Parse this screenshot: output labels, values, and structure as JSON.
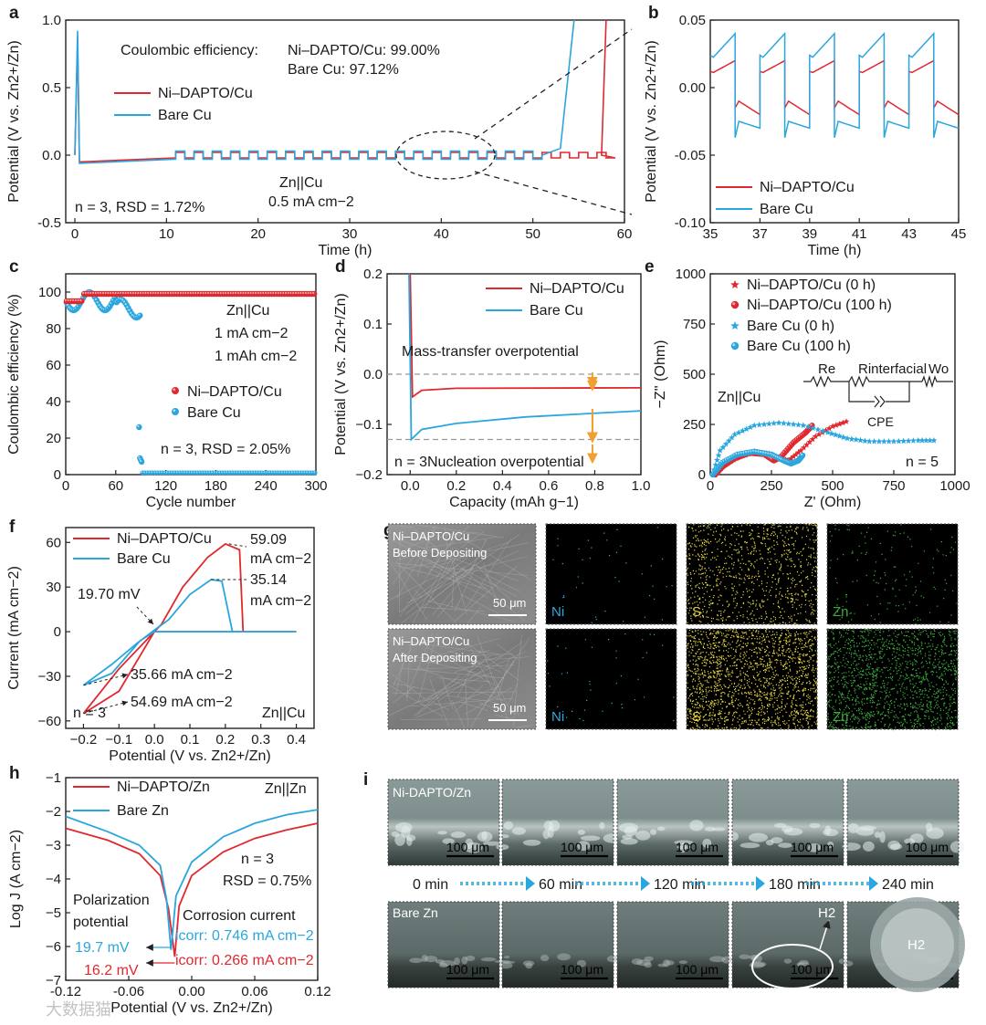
{
  "colors": {
    "red": "#e0282e",
    "blue": "#2aa6de",
    "orange": "#f0a030",
    "axis": "#222222",
    "dash": "#999999",
    "ni": "#35a8d8",
    "s": "#e6d640",
    "zn": "#3cae3c"
  },
  "panel_letters": [
    "a",
    "b",
    "c",
    "d",
    "e",
    "f",
    "g",
    "h",
    "i"
  ],
  "chart_data": [
    {
      "id": "a",
      "type": "line",
      "title": "",
      "xlabel": "Time (h)",
      "ylabel": "Potential (V vs. Zn2+/Zn)",
      "xlim": [
        -1,
        60
      ],
      "ylim": [
        -0.5,
        1.0
      ],
      "xticks": [
        0,
        10,
        20,
        30,
        40,
        50,
        60
      ],
      "yticks": [
        -0.5,
        0.0,
        0.5,
        1.0
      ],
      "ytick_labels": [
        "-0.5",
        "0.0",
        "0.5",
        "1.0"
      ],
      "annotations": [
        "Coulombic efficiency:",
        "Ni–DAPTO/Cu: 99.00%",
        "Bare Cu: 97.12%",
        "Zn||Cu",
        "n = 3, RSD = 1.72%",
        "0.5 mA cm−2"
      ],
      "series": [
        {
          "name": "Ni–DAPTO/Cu",
          "points": [
            [
              0,
              0.0
            ],
            [
              0.3,
              0.85
            ],
            [
              0.5,
              -0.05
            ],
            [
              11,
              -0.02
            ],
            [
              11,
              0.0
            ],
            [
              36,
              0.0
            ],
            [
              57.5,
              0.0
            ],
            [
              58,
              1.0
            ]
          ],
          "cycling_from": 11,
          "cycling_to": 57.5,
          "amplitude": 0.02
        },
        {
          "name": "Bare Cu",
          "points": [
            [
              0,
              0.0
            ],
            [
              0.3,
              0.92
            ],
            [
              0.5,
              -0.06
            ],
            [
              11,
              -0.03
            ],
            [
              11,
              0.0
            ],
            [
              51,
              0.0
            ],
            [
              53,
              0.05
            ],
            [
              54.5,
              1.0
            ]
          ],
          "cycling_from": 11,
          "cycling_to": 51,
          "amplitude": 0.03
        }
      ]
    },
    {
      "id": "b",
      "type": "line",
      "title": "",
      "xlabel": "Time (h)",
      "ylabel": "Potential (V vs. Zn2+/Zn)",
      "xlim": [
        35,
        45
      ],
      "ylim": [
        -0.1,
        0.05
      ],
      "xticks": [
        35,
        37,
        39,
        41,
        43,
        45
      ],
      "yticks": [
        -0.1,
        -0.05,
        0.0,
        0.05
      ],
      "ytick_labels": [
        "-0.10",
        "-0.05",
        "0.00",
        "0.05"
      ],
      "series": [
        {
          "name": "Ni–DAPTO/Cu",
          "charge_start": 0.01,
          "charge_end": 0.02,
          "discharge_start": -0.01,
          "discharge_end": -0.02
        },
        {
          "name": "Bare Cu",
          "charge_start": 0.02,
          "charge_end": 0.04,
          "discharge_start": -0.025,
          "discharge_end": -0.03
        }
      ]
    },
    {
      "id": "c",
      "type": "scatter",
      "title": "",
      "xlabel": "Cycle number",
      "ylabel": "Coulombic efficiency (%)",
      "xlim": [
        0,
        300
      ],
      "ylim": [
        0,
        110
      ],
      "xticks": [
        0,
        60,
        120,
        180,
        240,
        300
      ],
      "yticks": [
        0,
        20,
        40,
        60,
        80,
        100
      ],
      "annotations": [
        "Zn||Cu",
        "1 mA cm−2",
        "1 mAh cm−2",
        "n = 3, RSD = 2.05%"
      ],
      "series": [
        {
          "name": "Ni–DAPTO/Cu",
          "from": 1,
          "to": 300,
          "value": 99
        },
        {
          "name": "Bare Cu",
          "from": 1,
          "to": 90,
          "value": 95,
          "outliers": [
            [
              88,
              26
            ],
            [
              89,
              9
            ],
            [
              90,
              8
            ],
            [
              91,
              7
            ]
          ],
          "tail": [
            92,
            300,
            0
          ]
        }
      ]
    },
    {
      "id": "d",
      "type": "line",
      "title": "",
      "xlabel": "Capacity (mAh g−1)",
      "ylabel": "Potential (V vs. Zn2+/Zn)",
      "xlim": [
        -0.1,
        1.0
      ],
      "ylim": [
        -0.2,
        0.2
      ],
      "xticks": [
        0.0,
        0.2,
        0.4,
        0.6,
        0.8,
        1.0
      ],
      "yticks": [
        -0.2,
        -0.1,
        0.0,
        0.1,
        0.2
      ],
      "annotations": [
        "Mass-transfer overpotential",
        "Nucleation overpotential",
        "n = 3"
      ],
      "series": [
        {
          "name": "Ni–DAPTO/Cu",
          "points": [
            [
              0.0,
              0.2
            ],
            [
              0.01,
              -0.045
            ],
            [
              0.05,
              -0.032
            ],
            [
              0.2,
              -0.028
            ],
            [
              1.0,
              -0.027
            ]
          ]
        },
        {
          "name": "Bare Cu",
          "points": [
            [
              -0.005,
              0.2
            ],
            [
              0.005,
              -0.13
            ],
            [
              0.05,
              -0.11
            ],
            [
              0.2,
              -0.098
            ],
            [
              0.5,
              -0.085
            ],
            [
              1.0,
              -0.073
            ]
          ]
        }
      ],
      "reference_lines": [
        0.0,
        -0.13
      ]
    },
    {
      "id": "e",
      "type": "scatter",
      "title": "",
      "xlabel": "Z' (Ohm)",
      "ylabel": "−Z'' (Ohm)",
      "xlim": [
        0,
        1000
      ],
      "ylim": [
        0,
        1000
      ],
      "xticks": [
        0,
        250,
        500,
        750,
        1000
      ],
      "yticks": [
        0,
        250,
        500,
        750,
        1000
      ],
      "annotations": [
        "Zn||Cu",
        "n = 5",
        "Re",
        "Rinterfacial",
        "Wo",
        "CPE"
      ],
      "series": [
        {
          "name": "Ni–DAPTO/Cu (0 h)",
          "marker": "star",
          "color": "red",
          "points": [
            [
              20,
              0
            ],
            [
              60,
              50
            ],
            [
              120,
              90
            ],
            [
              180,
              110
            ],
            [
              240,
              105
            ],
            [
              290,
              80
            ],
            [
              320,
              70
            ],
            [
              370,
              120
            ],
            [
              430,
              190
            ],
            [
              500,
              240
            ],
            [
              570,
              270
            ]
          ]
        },
        {
          "name": "Ni–DAPTO/Cu (100 h)",
          "marker": "circle",
          "color": "red",
          "points": [
            [
              20,
              0
            ],
            [
              50,
              40
            ],
            [
              100,
              80
            ],
            [
              160,
              108
            ],
            [
              220,
              102
            ],
            [
              260,
              70
            ],
            [
              290,
              90
            ],
            [
              340,
              160
            ],
            [
              390,
              210
            ],
            [
              420,
              250
            ]
          ]
        },
        {
          "name": "Bare Cu (0 h)",
          "marker": "star",
          "color": "blue",
          "points": [
            [
              10,
              0
            ],
            [
              40,
              120
            ],
            [
              100,
              200
            ],
            [
              180,
              245
            ],
            [
              280,
              258
            ],
            [
              380,
              245
            ],
            [
              480,
              210
            ],
            [
              560,
              180
            ],
            [
              650,
              165
            ],
            [
              750,
              165
            ],
            [
              850,
              170
            ],
            [
              930,
              170
            ]
          ]
        },
        {
          "name": "Bare Cu (100 h)",
          "marker": "circle",
          "color": "blue",
          "points": [
            [
              10,
              0
            ],
            [
              50,
              60
            ],
            [
              110,
              100
            ],
            [
              180,
              115
            ],
            [
              250,
              100
            ],
            [
              300,
              70
            ],
            [
              330,
              55
            ],
            [
              360,
              70
            ],
            [
              380,
              100
            ]
          ]
        }
      ]
    },
    {
      "id": "f",
      "type": "line",
      "title": "",
      "xlabel": "Potential (V vs. Zn2+/Zn)",
      "ylabel": "Current (mA cm−2)",
      "xlim": [
        -0.25,
        0.45
      ],
      "ylim": [
        -65,
        70
      ],
      "xticks": [
        -0.2,
        -0.1,
        0.0,
        0.1,
        0.2,
        0.3,
        0.4
      ],
      "yticks": [
        -60,
        -30,
        0,
        30,
        60
      ],
      "annotations": [
        "59.09",
        "mA cm−2",
        "35.14",
        "mA cm−2",
        "19.70 mV",
        "35.66 mA cm−2",
        "54.69 mA cm−2",
        "n = 3",
        "Zn||Cu"
      ],
      "series": [
        {
          "name": "Ni–DAPTO/Cu",
          "points": [
            [
              0.4,
              0
            ],
            [
              0.25,
              0
            ],
            [
              0.24,
              55
            ],
            [
              0.2,
              59
            ],
            [
              0.15,
              50
            ],
            [
              0.08,
              30
            ],
            [
              0.02,
              5
            ],
            [
              -0.02,
              -5
            ],
            [
              -0.1,
              -25
            ],
            [
              -0.2,
              -55
            ],
            [
              -0.1,
              -40
            ],
            [
              -0.02,
              -8
            ],
            [
              0.0,
              0
            ],
            [
              0.4,
              0
            ]
          ]
        },
        {
          "name": "Bare Cu",
          "points": [
            [
              0.4,
              0
            ],
            [
              0.22,
              0
            ],
            [
              0.19,
              34
            ],
            [
              0.16,
              35
            ],
            [
              0.1,
              25
            ],
            [
              0.04,
              8
            ],
            [
              0.0,
              1
            ],
            [
              -0.05,
              -8
            ],
            [
              -0.12,
              -22
            ],
            [
              -0.2,
              -36
            ],
            [
              -0.12,
              -28
            ],
            [
              -0.04,
              -6
            ],
            [
              0.0,
              0
            ],
            [
              0.4,
              0
            ]
          ]
        }
      ]
    },
    {
      "id": "h",
      "type": "line",
      "title": "",
      "xlabel": "Potential (V vs. Zn2+/Zn)",
      "ylabel": "Log J (A cm−2)",
      "xlim": [
        -0.12,
        0.12
      ],
      "ylim": [
        -7,
        -1
      ],
      "xticks": [
        -0.12,
        -0.06,
        0.0,
        0.06,
        0.12
      ],
      "xtick_labels": [
        "-0.12",
        "-0.06",
        "0.00",
        "0.06",
        "0.12"
      ],
      "yticks": [
        -7,
        -6,
        -5,
        -4,
        -3,
        -2,
        -1
      ],
      "annotations": [
        "Zn||Zn",
        "n = 3",
        "RSD = 0.75%",
        "Polarization",
        "potential",
        "Corrosion current",
        "19.7 mV",
        "16.2 mV",
        "icorr: 0.746 mA cm−2",
        "icorr: 0.266 mA cm−2"
      ],
      "series": [
        {
          "name": "Ni–DAPTO/Zn",
          "points": [
            [
              -0.12,
              -2.5
            ],
            [
              -0.08,
              -2.85
            ],
            [
              -0.05,
              -3.25
            ],
            [
              -0.03,
              -3.9
            ],
            [
              -0.022,
              -4.9
            ],
            [
              -0.0162,
              -6.3
            ],
            [
              -0.012,
              -4.8
            ],
            [
              0.0,
              -3.9
            ],
            [
              0.03,
              -3.2
            ],
            [
              0.06,
              -2.8
            ],
            [
              0.09,
              -2.55
            ],
            [
              0.12,
              -2.35
            ]
          ]
        },
        {
          "name": "Bare Zn",
          "points": [
            [
              -0.12,
              -2.15
            ],
            [
              -0.08,
              -2.6
            ],
            [
              -0.05,
              -3.0
            ],
            [
              -0.03,
              -3.6
            ],
            [
              -0.024,
              -4.6
            ],
            [
              -0.0197,
              -6.1
            ],
            [
              -0.015,
              -4.5
            ],
            [
              0.0,
              -3.5
            ],
            [
              0.03,
              -2.75
            ],
            [
              0.06,
              -2.35
            ],
            [
              0.09,
              -2.1
            ],
            [
              0.12,
              -1.95
            ]
          ]
        }
      ]
    }
  ],
  "panel_g": {
    "rows": [
      {
        "title_line1": "Ni–DAPTO/Cu",
        "title_line2": "Before Depositing",
        "scale": "50 μm",
        "maps": [
          "Ni",
          "S",
          "Zn"
        ],
        "density": [
          40,
          900,
          150
        ]
      },
      {
        "title_line1": "Ni–DAPTO/Cu",
        "title_line2": "After Depositing",
        "scale": "50 μm",
        "maps": [
          "Ni",
          "S",
          "Zn"
        ],
        "density": [
          40,
          1700,
          1500
        ]
      }
    ]
  },
  "panel_i": {
    "row1_label": "Ni-DAPTO/Zn",
    "row2_label": "Bare Zn",
    "scale": "100 μm",
    "times": [
      "0 min",
      "60 min",
      "120 min",
      "180 min",
      "240 min"
    ],
    "bubble_label": "H2"
  },
  "watermark": "大数据猫"
}
